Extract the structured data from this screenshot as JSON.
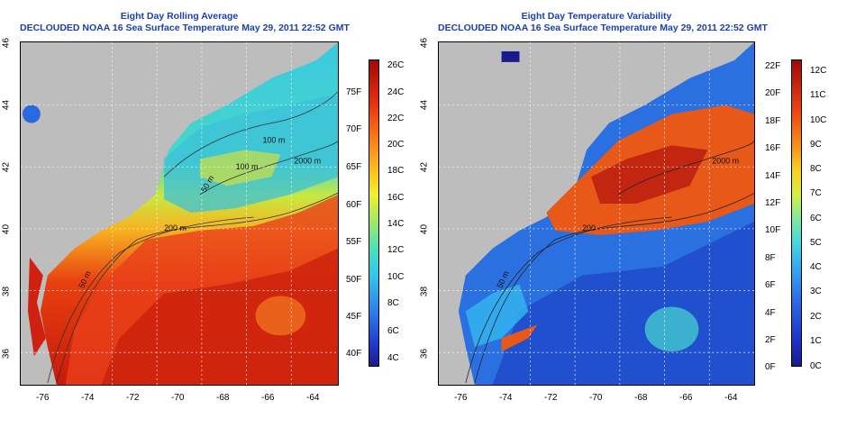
{
  "left_panel": {
    "title": "Eight Day Rolling Average",
    "subtitle": "DECLOUDED NOAA 16 Sea Surface Temperature May 29, 2011 22:52 GMT",
    "colorbar_c": [
      "26C",
      "24C",
      "22C",
      "20C",
      "18C",
      "16C",
      "14C",
      "12C",
      "10C",
      "8C",
      "6C",
      "4C"
    ],
    "colorbar_f": [
      "75F",
      "70F",
      "65F",
      "60F",
      "55F",
      "50F",
      "45F",
      "40F"
    ],
    "contours": [
      "100 m",
      "100 m",
      "50 m",
      "2000 m",
      "200 m",
      "50 m"
    ]
  },
  "right_panel": {
    "title": "Eight Day Temperature Variability",
    "subtitle": "DECLOUDED NOAA 16 Sea Surface Temperature May 29, 2011 22:52 GMT",
    "colorbar_c": [
      "12C",
      "11C",
      "10C",
      "9C",
      "8C",
      "7C",
      "6C",
      "5C",
      "4C",
      "3C",
      "2C",
      "1C",
      "0C"
    ],
    "colorbar_f": [
      "22F",
      "20F",
      "18F",
      "16F",
      "14F",
      "12F",
      "10F",
      "8F",
      "6F",
      "4F",
      "2F",
      "0F"
    ],
    "contours": [
      "2000 m",
      "200",
      "50 m"
    ]
  },
  "axes": {
    "lon_ticks": [
      "-76",
      "-74",
      "-72",
      "-70",
      "-68",
      "-66",
      "-64"
    ],
    "lat_ticks": [
      "46",
      "44",
      "42",
      "40",
      "38",
      "36"
    ]
  },
  "colors": {
    "title": "#1a3fb0",
    "land": "#bdbdbd"
  }
}
